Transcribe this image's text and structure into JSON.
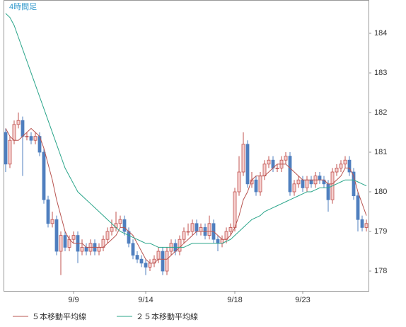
{
  "chart_data": {
    "type": "candlestick",
    "annotation": "4時間足",
    "categories": [
      null,
      null,
      null,
      null,
      null,
      null,
      null,
      null,
      null,
      null,
      null,
      null,
      null,
      null,
      null,
      null,
      "9/9",
      null,
      null,
      null,
      null,
      null,
      null,
      null,
      null,
      null,
      null,
      null,
      null,
      null,
      null,
      null,
      null,
      "9/14",
      null,
      null,
      null,
      null,
      null,
      null,
      null,
      null,
      null,
      null,
      null,
      null,
      null,
      null,
      null,
      null,
      null,
      null,
      null,
      null,
      "9/18",
      null,
      null,
      null,
      null,
      null,
      null,
      null,
      null,
      null,
      null,
      null,
      null,
      null,
      null,
      null,
      "9/23",
      null,
      null,
      null,
      null,
      null,
      null,
      null,
      null,
      null,
      null,
      null,
      null,
      null,
      null,
      null
    ],
    "open": [
      181.5,
      180.7,
      181.3,
      181.7,
      181.8,
      181.4,
      181.4,
      181.3,
      181.4,
      181.0,
      179.8,
      179.2,
      179.3,
      178.5,
      178.9,
      178.6,
      178.8,
      178.9,
      178.5,
      178.6,
      178.5,
      178.7,
      178.5,
      178.6,
      178.8,
      179.0,
      179.1,
      179.2,
      179.3,
      179.0,
      178.7,
      178.4,
      178.3,
      178.2,
      178.1,
      178.2,
      178.3,
      178.5,
      178.0,
      178.5,
      178.7,
      178.5,
      178.8,
      179.0,
      179.0,
      179.2,
      179.0,
      179.1,
      178.9,
      179.2,
      178.8,
      178.7,
      178.8,
      179.0,
      179.1,
      180.0,
      180.5,
      181.2,
      180.2,
      180.3,
      180.0,
      180.4,
      180.7,
      180.8,
      180.6,
      180.6,
      180.8,
      180.9,
      180.0,
      180.2,
      180.3,
      180.1,
      180.3,
      180.2,
      180.4,
      180.3,
      180.2,
      179.8,
      180.5,
      180.6,
      180.7,
      180.8,
      180.5,
      179.9,
      179.3,
      179.1
    ],
    "high": [
      181.6,
      181.4,
      181.8,
      182.0,
      181.9,
      181.5,
      181.5,
      181.5,
      181.5,
      181.1,
      179.9,
      179.5,
      179.4,
      179.0,
      179.0,
      178.9,
      179.0,
      179.0,
      178.8,
      178.7,
      178.8,
      178.8,
      178.7,
      178.9,
      179.1,
      179.3,
      179.5,
      179.4,
      179.4,
      179.1,
      178.8,
      178.5,
      178.4,
      178.3,
      178.3,
      178.4,
      178.6,
      178.6,
      178.6,
      178.8,
      178.8,
      178.9,
      179.1,
      179.2,
      179.3,
      179.3,
      179.2,
      179.2,
      179.4,
      179.3,
      178.9,
      178.9,
      179.1,
      179.2,
      180.1,
      180.9,
      181.5,
      181.3,
      180.5,
      180.4,
      180.5,
      180.8,
      180.9,
      180.9,
      180.7,
      180.9,
      181.0,
      181.0,
      180.3,
      180.4,
      180.4,
      180.4,
      180.4,
      180.5,
      180.5,
      180.4,
      180.3,
      180.6,
      180.7,
      180.8,
      180.9,
      180.9,
      180.6,
      180.0,
      179.4,
      179.3
    ],
    "low": [
      180.5,
      180.6,
      181.2,
      181.6,
      180.4,
      181.3,
      181.2,
      181.2,
      180.9,
      179.7,
      179.1,
      179.1,
      178.4,
      177.9,
      178.5,
      178.5,
      178.7,
      178.2,
      178.4,
      178.4,
      178.4,
      178.4,
      178.4,
      178.5,
      178.7,
      178.9,
      179.0,
      179.1,
      178.9,
      178.6,
      178.3,
      178.2,
      178.1,
      177.9,
      178.0,
      178.1,
      178.2,
      177.9,
      177.9,
      178.4,
      178.4,
      178.4,
      178.7,
      178.9,
      178.9,
      178.9,
      178.9,
      178.8,
      178.8,
      178.7,
      178.5,
      178.6,
      178.7,
      178.9,
      179.0,
      179.9,
      180.4,
      180.1,
      180.1,
      179.9,
      179.9,
      180.3,
      180.6,
      180.5,
      180.5,
      180.5,
      180.7,
      179.9,
      179.9,
      180.1,
      180.0,
      180.0,
      180.1,
      180.1,
      180.2,
      180.1,
      179.5,
      179.7,
      180.4,
      180.5,
      180.6,
      180.4,
      179.8,
      179.0,
      179.0,
      179.0
    ],
    "close": [
      180.7,
      181.3,
      181.7,
      181.8,
      181.4,
      181.4,
      181.3,
      181.4,
      181.0,
      179.8,
      179.2,
      179.3,
      178.5,
      178.9,
      178.6,
      178.8,
      178.9,
      178.5,
      178.6,
      178.5,
      178.7,
      178.5,
      178.6,
      178.8,
      179.0,
      179.1,
      179.2,
      179.3,
      179.0,
      178.7,
      178.4,
      178.3,
      178.2,
      178.1,
      178.2,
      178.3,
      178.5,
      178.0,
      178.5,
      178.7,
      178.5,
      178.8,
      179.0,
      179.0,
      179.2,
      179.0,
      179.1,
      178.9,
      179.2,
      178.8,
      178.7,
      178.8,
      179.0,
      179.1,
      180.0,
      180.5,
      181.2,
      180.2,
      180.3,
      180.0,
      180.4,
      180.7,
      180.8,
      180.6,
      180.6,
      180.8,
      180.9,
      180.0,
      180.2,
      180.3,
      180.1,
      180.3,
      180.2,
      180.4,
      180.3,
      180.2,
      179.8,
      180.5,
      180.6,
      180.7,
      180.8,
      180.5,
      179.9,
      179.3,
      179.1,
      179.2
    ],
    "up_color": "#c0504d",
    "up_fill": "#f6d0cf",
    "down_color": "#4f7fbf",
    "series": [
      {
        "name": "５本移動平均線",
        "color": "#b85450",
        "values": [
          181.6,
          181.4,
          181.3,
          181.3,
          181.4,
          181.5,
          181.6,
          181.5,
          181.4,
          181.1,
          180.7,
          180.3,
          179.8,
          179.4,
          179.0,
          178.8,
          178.7,
          178.7,
          178.7,
          178.6,
          178.6,
          178.6,
          178.6,
          178.6,
          178.7,
          178.8,
          178.9,
          179.1,
          179.1,
          179.0,
          178.9,
          178.7,
          178.5,
          178.3,
          178.2,
          178.2,
          178.3,
          178.3,
          178.3,
          178.4,
          178.5,
          178.6,
          178.7,
          178.8,
          178.9,
          179.0,
          179.0,
          179.0,
          179.0,
          179.0,
          178.9,
          178.8,
          178.8,
          178.9,
          179.1,
          179.4,
          179.8,
          180.0,
          180.3,
          180.4,
          180.4,
          180.4,
          180.5,
          180.6,
          180.7,
          180.7,
          180.7,
          180.6,
          180.5,
          180.4,
          180.3,
          180.3,
          180.3,
          180.3,
          180.3,
          180.3,
          180.2,
          180.2,
          180.3,
          180.4,
          180.6,
          180.6,
          180.4,
          180.0,
          179.7,
          179.4
        ]
      },
      {
        "name": "２５本移動平均線",
        "color": "#2aa58a",
        "values": [
          184.5,
          184.4,
          184.2,
          183.9,
          183.6,
          183.3,
          183.0,
          182.7,
          182.4,
          182.1,
          181.8,
          181.5,
          181.2,
          180.9,
          180.6,
          180.4,
          180.2,
          180.0,
          179.9,
          179.8,
          179.7,
          179.6,
          179.5,
          179.4,
          179.3,
          179.2,
          179.1,
          179.0,
          178.95,
          178.9,
          178.85,
          178.8,
          178.75,
          178.7,
          178.7,
          178.65,
          178.6,
          178.6,
          178.6,
          178.6,
          178.6,
          178.6,
          178.6,
          178.65,
          178.7,
          178.7,
          178.7,
          178.7,
          178.7,
          178.7,
          178.7,
          178.7,
          178.75,
          178.8,
          178.9,
          179.0,
          179.1,
          179.2,
          179.3,
          179.35,
          179.4,
          179.5,
          179.55,
          179.6,
          179.65,
          179.7,
          179.75,
          179.8,
          179.85,
          179.9,
          179.95,
          180.0,
          180.0,
          180.05,
          180.1,
          180.1,
          180.1,
          180.15,
          180.2,
          180.25,
          180.3,
          180.3,
          180.3,
          180.25,
          180.2,
          180.15
        ]
      }
    ],
    "ylim": [
      177.5,
      184.84
    ],
    "yticks": [
      178,
      179,
      180,
      181,
      182,
      183,
      184
    ],
    "grid": false
  }
}
